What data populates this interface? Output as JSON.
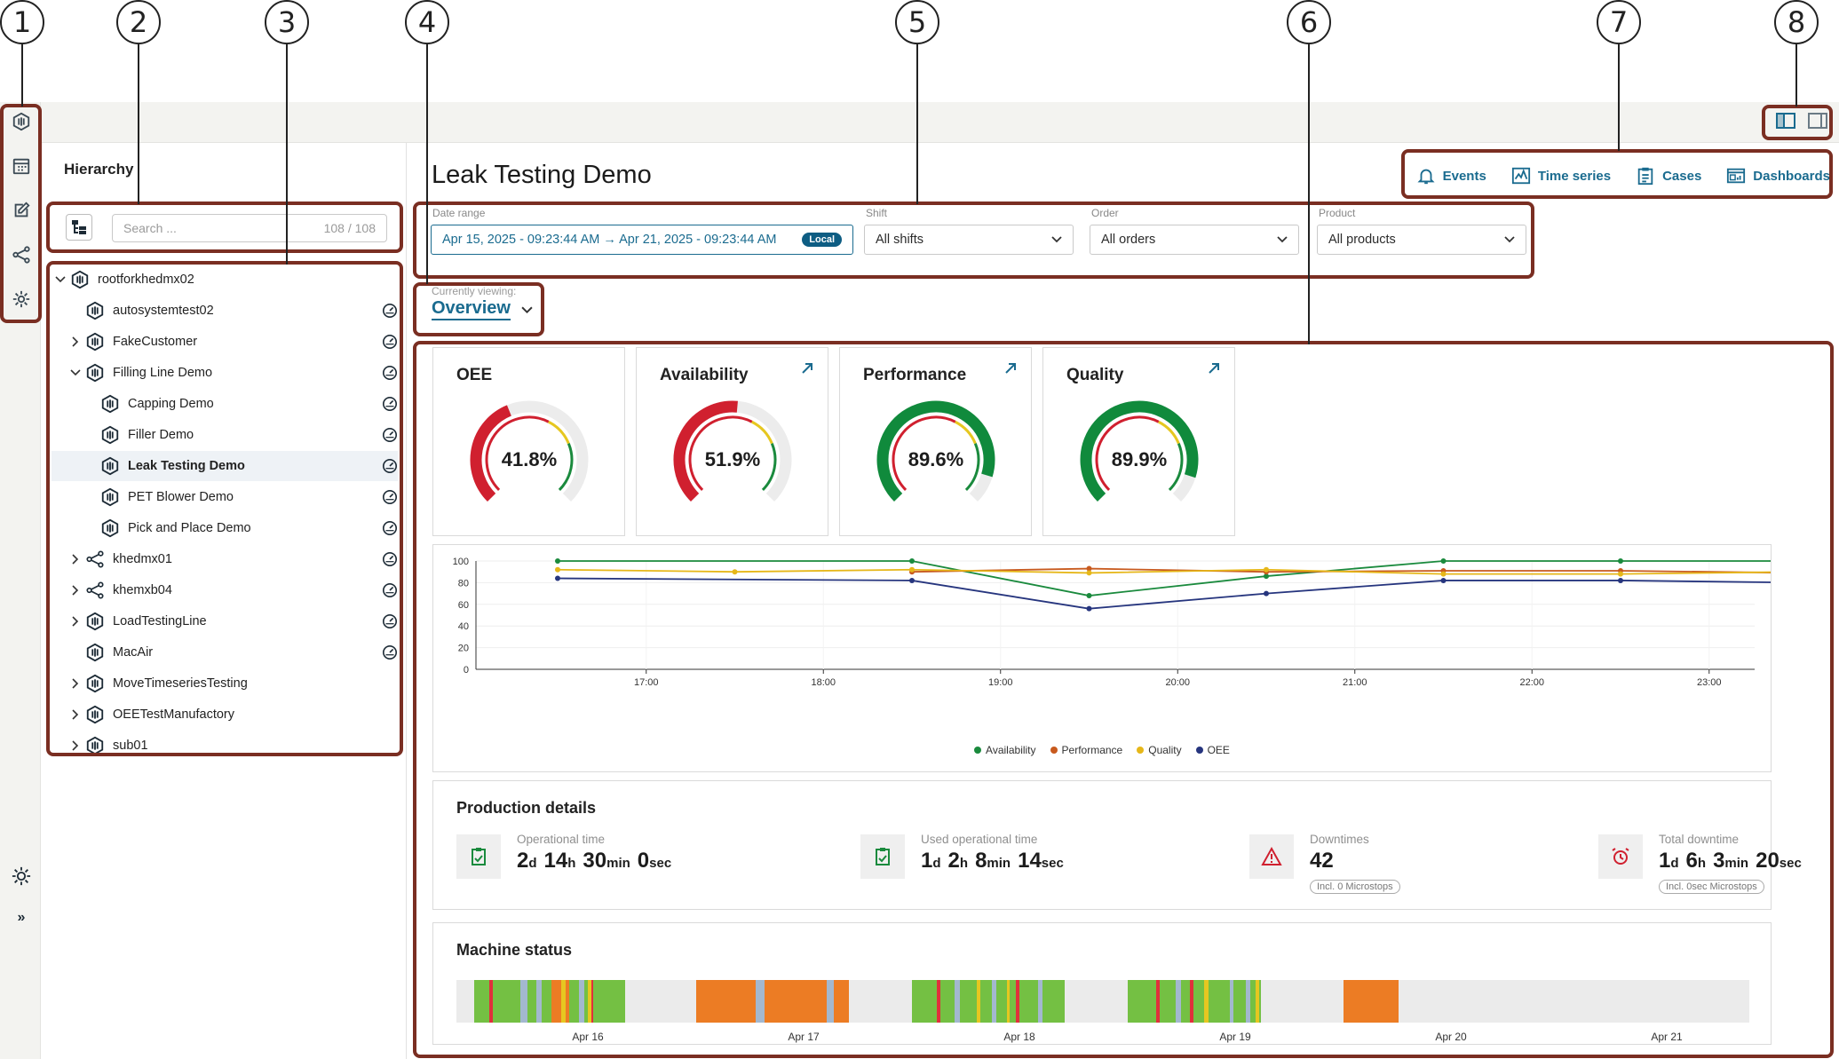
{
  "callouts": [
    "1",
    "2",
    "3",
    "4",
    "5",
    "6",
    "7",
    "8"
  ],
  "sidebar": {
    "title": "Hierarchy",
    "search_placeholder": "Search ...",
    "search_count": "108 / 108",
    "items": [
      {
        "label": "rootforkhedmx02",
        "expanded": true,
        "icon": "asset-icon"
      },
      {
        "label": "autosystemtest02",
        "icon": "asset-icon"
      },
      {
        "label": "FakeCustomer",
        "icon": "asset-icon"
      },
      {
        "label": "Filling Line Demo",
        "expanded": true,
        "icon": "asset-icon"
      },
      {
        "label": "Capping Demo",
        "icon": "asset-icon"
      },
      {
        "label": "Filler Demo",
        "icon": "asset-icon"
      },
      {
        "label": "Leak Testing Demo",
        "selected": true,
        "icon": "asset-icon"
      },
      {
        "label": "PET Blower Demo",
        "icon": "asset-icon"
      },
      {
        "label": "Pick and Place Demo",
        "icon": "asset-icon"
      },
      {
        "label": "khedmx01",
        "icon": "share-icon"
      },
      {
        "label": "khemxb04",
        "icon": "share-icon"
      },
      {
        "label": "LoadTestingLine",
        "icon": "asset-icon"
      },
      {
        "label": "MacAir",
        "icon": "asset-icon"
      },
      {
        "label": "MoveTimeseriesTesting",
        "icon": "asset-icon"
      },
      {
        "label": "OEETestManufactory",
        "icon": "asset-icon"
      },
      {
        "label": "sub01",
        "icon": "asset-icon"
      }
    ]
  },
  "header": {
    "title": "Leak Testing Demo",
    "links": [
      "Events",
      "Time series",
      "Cases",
      "Dashboards"
    ]
  },
  "filters": {
    "date_label": "Date range",
    "date_value": "Apr 15, 2025 - 09:23:44 AM → Apr 21, 2025 - 09:23:44 AM",
    "date_badge": "Local",
    "shift_label": "Shift",
    "shift_value": "All shifts",
    "order_label": "Order",
    "order_value": "All orders",
    "product_label": "Product",
    "product_value": "All products"
  },
  "viewing": {
    "label": "Currently viewing:",
    "value": "Overview"
  },
  "kpis": [
    {
      "title": "OEE",
      "value": "41.8%",
      "fraction": 0.418,
      "color": "#d0202f",
      "arrow": false
    },
    {
      "title": "Availability",
      "value": "51.9%",
      "fraction": 0.519,
      "color": "#d0202f",
      "arrow": true
    },
    {
      "title": "Performance",
      "value": "89.6%",
      "fraction": 0.896,
      "color": "#108a3c",
      "arrow": true
    },
    {
      "title": "Quality",
      "value": "89.9%",
      "fraction": 0.899,
      "color": "#108a3c",
      "arrow": true
    }
  ],
  "chart_data": {
    "type": "line",
    "x": [
      "16:30",
      "17:30",
      "18:30",
      "19:30",
      "20:30",
      "21:30",
      "22:30",
      "23:30"
    ],
    "x_ticks": [
      "17:00",
      "18:00",
      "19:00",
      "20:00",
      "21:00",
      "22:00",
      "23:00"
    ],
    "ylim": [
      0,
      100
    ],
    "y_ticks": [
      "0",
      "20",
      "40",
      "60",
      "80",
      "100"
    ],
    "series": [
      {
        "name": "Availability",
        "color": "#1a8a3d",
        "values": [
          100,
          null,
          100,
          68,
          86,
          100,
          100,
          100
        ]
      },
      {
        "name": "Performance",
        "color": "#c85a1e",
        "values": [
          null,
          null,
          90,
          93,
          90,
          91,
          91,
          89
        ]
      },
      {
        "name": "Quality",
        "color": "#e6b719",
        "values": [
          92,
          90,
          92,
          89,
          92,
          88,
          88,
          90
        ]
      },
      {
        "name": "OEE",
        "color": "#26357e",
        "values": [
          84,
          null,
          82,
          56,
          70,
          82,
          82,
          80
        ]
      }
    ],
    "legend_position": "bottom"
  },
  "production": {
    "title": "Production details",
    "items": [
      {
        "label": "Operational time",
        "value": [
          [
            "2",
            "d"
          ],
          [
            "14",
            "h"
          ],
          [
            "30",
            "min"
          ],
          [
            "0",
            "sec"
          ]
        ],
        "icon": "clipboard-check-icon",
        "icon_color": "#1a8a3d"
      },
      {
        "label": "Used operational time",
        "value": [
          [
            "1",
            "d"
          ],
          [
            "2",
            "h"
          ],
          [
            "8",
            "min"
          ],
          [
            "14",
            "sec"
          ]
        ],
        "icon": "clipboard-check-icon",
        "icon_color": "#1a8a3d"
      },
      {
        "label": "Downtimes",
        "value": [
          [
            "42",
            ""
          ]
        ],
        "pill": "Incl. 0 Microstops",
        "icon": "warning-icon",
        "icon_color": "#d0202f"
      },
      {
        "label": "Total downtime",
        "value": [
          [
            "1",
            "d"
          ],
          [
            "6",
            "h"
          ],
          [
            "3",
            "min"
          ],
          [
            "20",
            "sec"
          ]
        ],
        "pill": "Incl. 0sec Microstops",
        "icon": "alarm-icon",
        "icon_color": "#d0202f"
      }
    ]
  },
  "machine_status": {
    "title": "Machine status",
    "dates": [
      "Apr 16",
      "Apr 17",
      "Apr 18",
      "Apr 19",
      "Apr 20",
      "Apr 21"
    ],
    "colors": {
      "running": "#74c043",
      "stopped": "#ec7c24",
      "fault": "#e0303b",
      "idle": "#a3b8cf",
      "warning": "#e6c720",
      "none": "#ebebeb"
    }
  }
}
